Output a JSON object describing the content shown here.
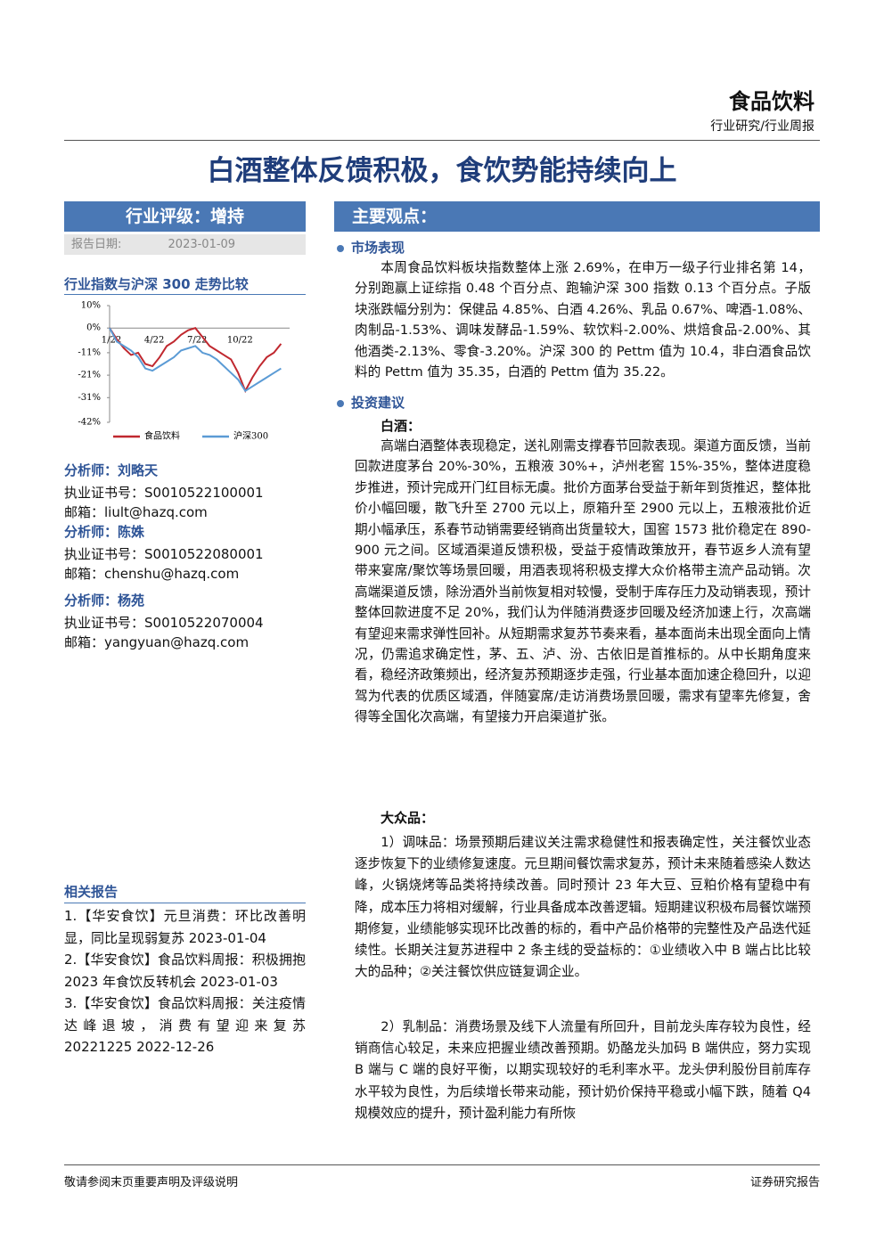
{
  "header": {
    "sector": "食品饮料",
    "report_type": "行业研究/行业周报"
  },
  "title": "白酒整体反馈积极，食饮势能持续向上",
  "rating": {
    "label": "行业评级：增持",
    "date_label": "报告日期:",
    "date": "2023-01-09"
  },
  "chart_data": {
    "type": "line",
    "title": "行业指数与沪深 300 走势比较",
    "categories": [
      "1/22",
      null,
      null,
      null,
      null,
      null,
      "4/22",
      null,
      null,
      null,
      null,
      null,
      "7/22",
      null,
      null,
      null,
      null,
      null,
      "10/22",
      null,
      null,
      null,
      null,
      null,
      null
    ],
    "series": [
      {
        "name": "食品饮料",
        "color": "#c0282f",
        "values": [
          0,
          -5,
          -9,
          -12,
          -11,
          -16,
          -17,
          -13,
          -8,
          -6,
          -3,
          -1,
          0,
          -4,
          -8,
          -10,
          -12,
          -14,
          -20,
          -28,
          -22,
          -17,
          -13,
          -11,
          -7
        ]
      },
      {
        "name": "沪深300",
        "color": "#5b9bd5",
        "values": [
          0,
          -6,
          -8,
          -10,
          -13,
          -18,
          -19,
          -17,
          -15,
          -13,
          -10,
          -9,
          -8,
          -11,
          -12,
          -14,
          -17,
          -20,
          -23,
          -28,
          -26,
          -24,
          -22,
          -20,
          -18
        ]
      }
    ],
    "ylim": [
      -42,
      10
    ],
    "yticks": [
      {
        "value": 10,
        "label": "10%"
      },
      {
        "value": 0,
        "label": "0%"
      },
      {
        "value": -11,
        "label": "-11%"
      },
      {
        "value": -21,
        "label": "-21%"
      },
      {
        "value": -31,
        "label": "-31%"
      },
      {
        "value": -42,
        "label": "-42%"
      }
    ]
  },
  "analysts": [
    {
      "name": "分析师：刘略天",
      "cert": "执业证书号：S0010522100001",
      "email": "邮箱：liult@hazq.com"
    },
    {
      "name": "分析师：陈姝",
      "cert": "执业证书号：S0010522080001",
      "email": "邮箱：chenshu@hazq.com"
    },
    {
      "name": "分析师：杨苑",
      "cert": "执业证书号：S0010522070004",
      "email": "邮箱：yangyuan@hazq.com"
    }
  ],
  "related": {
    "heading": "相关报告",
    "items": [
      "1.【华安食饮】元旦消费：环比改善明显，同比呈现弱复苏 2023-01-04",
      "2.【华安食饮】食品饮料周报：积极拥抱 2023 年食饮反转机会 2023-01-03",
      "3.【华安食饮】食品饮料周报：关注疫情达峰退坡，消费有望迎来复苏 20221225 2022-12-26"
    ]
  },
  "main": {
    "heading": "主要观点：",
    "market": {
      "heading": "市场表现",
      "text": "本周食品饮料板块指数整体上涨 2.69%，在申万一级子行业排名第 14，分别跑赢上证综指 0.48 个百分点、跑输沪深 300 指数 0.13 个百分点。子版块涨跌幅分别为：保健品 4.85%、白酒 4.26%、乳品 0.67%、啤酒-1.08%、肉制品-1.53%、调味发酵品-1.59%、软饮料-2.00%、烘焙食品-2.00%、其他酒类-2.13%、零食-3.20%。沪深 300 的 Pettm 值为 10.4，非白酒食品饮料的 Pettm 值为 35.35，白酒的 Pettm 值为 35.22。"
    },
    "advice": {
      "heading": "投资建议",
      "baijiu_heading": "白酒：",
      "baijiu": "高端白酒整体表现稳定，送礼刚需支撑春节回款表现。渠道方面反馈，当前回款进度茅台 20%-30%，五粮液 30%+，泸州老窖 15%-35%，整体进度稳步推进，预计完成开门红目标无虞。批价方面茅台受益于新年到货推迟，整体批价小幅回暖，散飞升至 2700 元以上，原箱升至 2900 元以上，五粮液批价近期小幅承压，系春节动销需要经销商出货量较大，国窖 1573 批价稳定在 890-900 元之间。区域酒渠道反馈积极，受益于疫情政策放开，春节返乡人流有望带来宴席/聚饮等场景回暖，用酒表现将积极支撑大众价格带主流产品动销。次高端渠道反馈，除汾酒外当前恢复相对较慢，受制于库存压力及动销表现，预计整体回款进度不足 20%，我们认为伴随消费逐步回暖及经济加速上行，次高端有望迎来需求弹性回补。从短期需求复苏节奏来看，基本面尚未出现全面向上情况，仍需追求确定性，茅、五、泸、汾、古依旧是首推标的。从中长期角度来看，稳经济政策频出，经济复苏预期逐步走强，行业基本面加速企稳回升，以迎驾为代表的优质区域酒，伴随宴席/走访消费场景回暖，需求有望率先修复，舍得等全国化次高端，有望接力开启渠道扩张。",
      "mass_heading": "大众品：",
      "condiment": "1）调味品：场景预期后建议关注需求稳健性和报表确定性，关注餐饮业态逐步恢复下的业绩修复速度。元旦期间餐饮需求复苏，预计未来随着感染人数达峰，火锅烧烤等品类将持续改善。同时预计 23 年大豆、豆粕价格有望稳中有降，成本压力将相对缓解，行业具备成本改善逻辑。短期建议积极布局餐饮端预期修复，业绩能够实现环比改善的标的，看中产品价格带的完整性及产品迭代延续性。长期关注复苏进程中 2 条主线的受益标的：①业绩收入中 B 端占比比较大的品种；②关注餐饮供应链复调企业。",
      "dairy": "2）乳制品：消费场景及线下人流量有所回升，目前龙头库存较为良性，经销商信心较足，未来应把握业绩改善预期。奶酪龙头加码 B 端供应，努力实现 B 端与 C 端的良好平衡，以期实现较好的毛利率水平。龙头伊利股份目前库存水平较为良性，为后续增长带来动能，预计奶价保持平稳或小幅下跌，随着 Q4 规模效应的提升，预计盈利能力有所恢"
    }
  },
  "footer": {
    "left": "敬请参阅末页重要声明及评级说明",
    "right": "证券研究报告"
  }
}
